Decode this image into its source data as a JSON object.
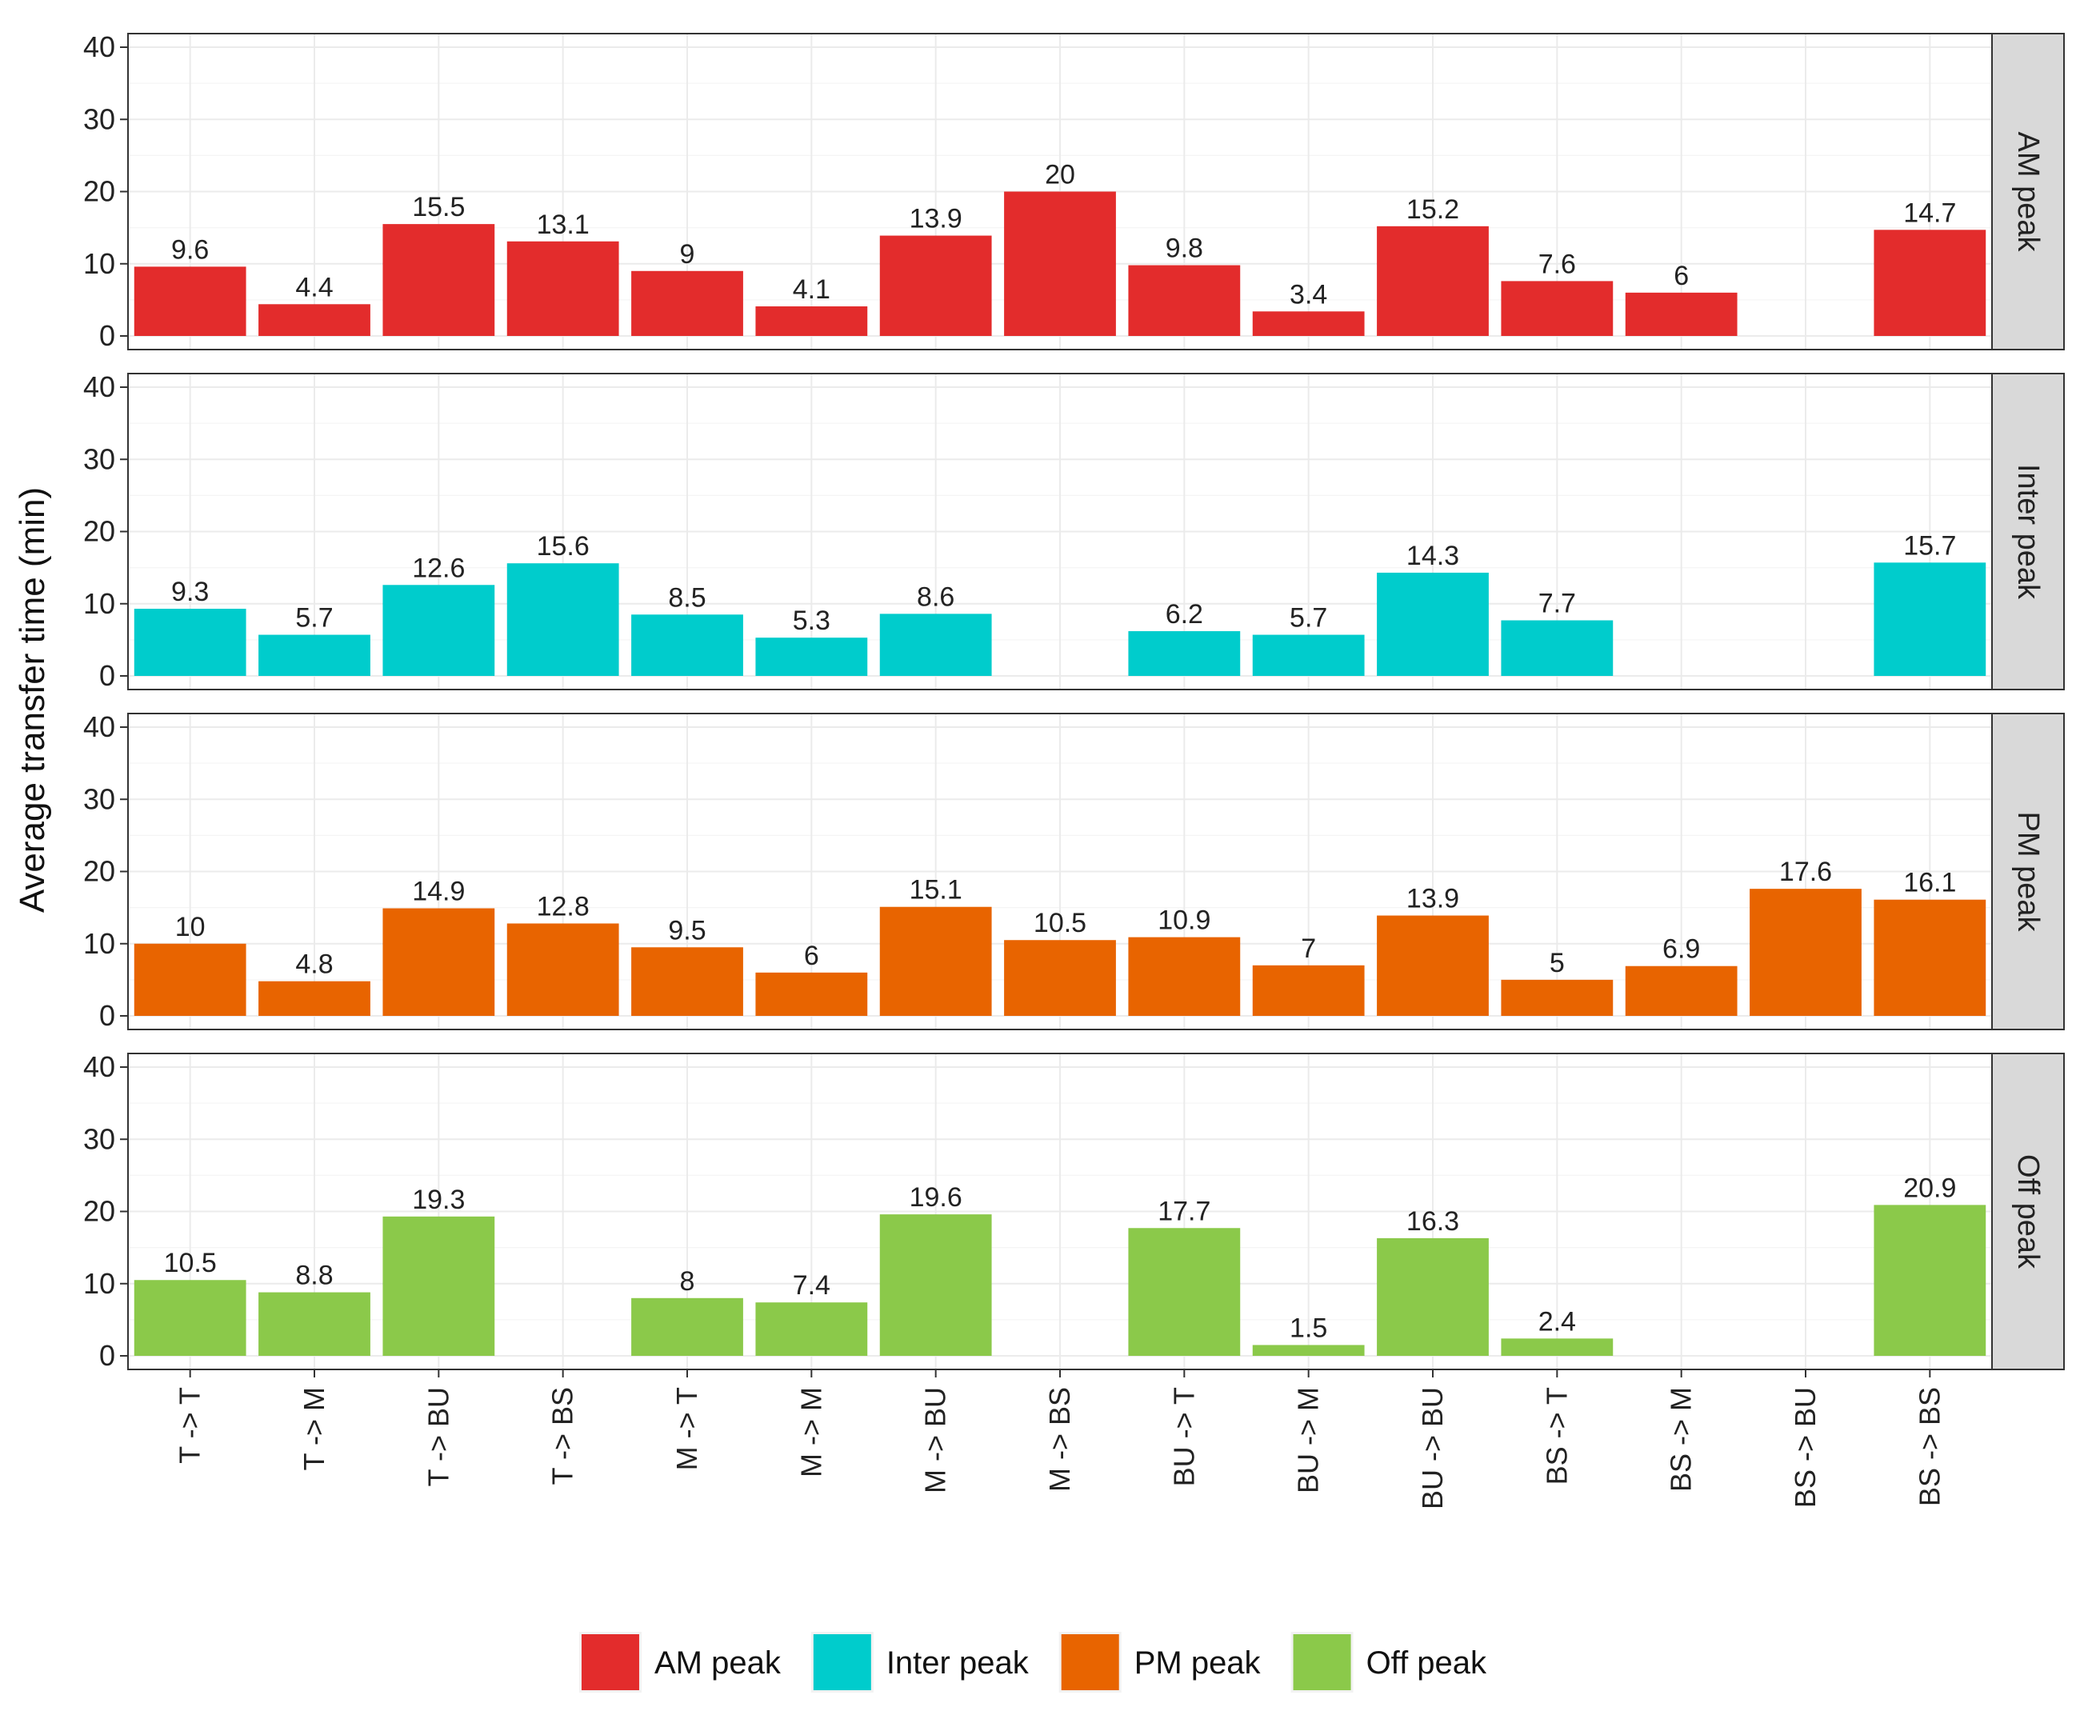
{
  "chart_data": {
    "type": "bar",
    "ylabel": "Average transfer time (min)",
    "xlabel": "",
    "ylim": [
      0,
      40
    ],
    "yticks": [
      0,
      10,
      20,
      30,
      40
    ],
    "categories": [
      "T -> T",
      "T -> M",
      "T -> BU",
      "T -> BS",
      "M -> T",
      "M -> M",
      "M -> BU",
      "M -> BS",
      "BU -> T",
      "BU -> M",
      "BU -> BU",
      "BS -> T",
      "BS -> M",
      "BS -> BU",
      "BS -> BS"
    ],
    "grid": true,
    "legend_position": "bottom",
    "series": [
      {
        "name": "AM peak",
        "color": "#e32c2c",
        "values": [
          9.6,
          4.4,
          15.5,
          13.1,
          9,
          4.1,
          13.9,
          20,
          9.8,
          3.4,
          15.2,
          7.6,
          6,
          null,
          14.7
        ],
        "labels": [
          "9.6",
          "4.4",
          "15.5",
          "13.1",
          "9",
          "4.1",
          "13.9",
          "20",
          "9.8",
          "3.4",
          "15.2",
          "7.6",
          "6",
          "",
          "14.7"
        ]
      },
      {
        "name": "Inter peak",
        "color": "#00cccc",
        "values": [
          9.3,
          5.7,
          12.6,
          15.6,
          8.5,
          5.3,
          8.6,
          null,
          6.2,
          5.7,
          14.3,
          7.7,
          null,
          null,
          15.7
        ],
        "labels": [
          "9.3",
          "5.7",
          "12.6",
          "15.6",
          "8.5",
          "5.3",
          "8.6",
          "",
          "6.2",
          "5.7",
          "14.3",
          "7.7",
          "",
          "",
          "15.7"
        ]
      },
      {
        "name": "PM peak",
        "color": "#e86400",
        "values": [
          10,
          4.8,
          14.9,
          12.8,
          9.5,
          6,
          15.1,
          10.5,
          10.9,
          7,
          13.9,
          5,
          6.9,
          17.6,
          16.1
        ],
        "labels": [
          "10",
          "4.8",
          "14.9",
          "12.8",
          "9.5",
          "6",
          "15.1",
          "10.5",
          "10.9",
          "7",
          "13.9",
          "5",
          "6.9",
          "17.6",
          "16.1"
        ]
      },
      {
        "name": "Off peak",
        "color": "#8bc94a",
        "values": [
          10.5,
          8.8,
          19.3,
          null,
          8,
          7.4,
          19.6,
          null,
          17.7,
          1.5,
          16.3,
          2.4,
          null,
          null,
          20.9
        ],
        "labels": [
          "10.5",
          "8.8",
          "19.3",
          "",
          "8",
          "7.4",
          "19.6",
          "",
          "17.7",
          "1.5",
          "16.3",
          "2.4",
          "",
          "",
          "20.9"
        ]
      }
    ]
  }
}
